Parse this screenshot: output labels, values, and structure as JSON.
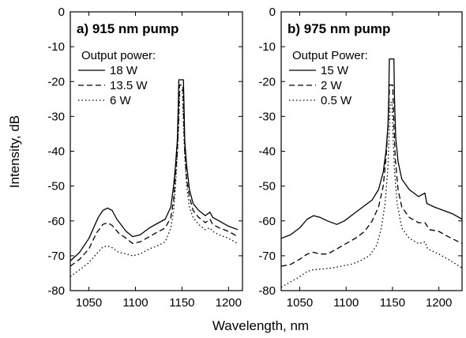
{
  "chart_data": [
    {
      "type": "line",
      "title": "a) 915 nm pump",
      "xlabel": "Wavelength, nm",
      "ylabel": "Intensity, dB",
      "xlim": [
        1030,
        1215
      ],
      "ylim": [
        -80,
        0
      ],
      "xticks": [
        1050,
        1100,
        1150,
        1200
      ],
      "yticks": [
        0,
        -10,
        -20,
        -30,
        -40,
        -50,
        -60,
        -70,
        -80
      ],
      "legend_title": "Output power:",
      "legend_position": "top-left",
      "series": [
        {
          "name": "18 W",
          "style": "solid",
          "color": "#000000",
          "points": [
            [
              1030,
              -71.5
            ],
            [
              1040,
              -69
            ],
            [
              1050,
              -65
            ],
            [
              1060,
              -59
            ],
            [
              1065,
              -57
            ],
            [
              1070,
              -56.3
            ],
            [
              1075,
              -57
            ],
            [
              1080,
              -59.5
            ],
            [
              1090,
              -63
            ],
            [
              1097,
              -64.5
            ],
            [
              1105,
              -64
            ],
            [
              1115,
              -62
            ],
            [
              1125,
              -60.5
            ],
            [
              1132,
              -59.5
            ],
            [
              1138,
              -56
            ],
            [
              1141,
              -50
            ],
            [
              1143,
              -44
            ],
            [
              1145,
              -37
            ],
            [
              1146,
              -27
            ],
            [
              1146.6,
              -19.5
            ],
            [
              1151.5,
              -19.5
            ],
            [
              1152.2,
              -27
            ],
            [
              1153,
              -37
            ],
            [
              1155,
              -44
            ],
            [
              1158,
              -51
            ],
            [
              1162,
              -55
            ],
            [
              1168,
              -57
            ],
            [
              1175,
              -58.5
            ],
            [
              1180,
              -57.5
            ],
            [
              1183,
              -59
            ],
            [
              1190,
              -60
            ],
            [
              1200,
              -61.5
            ],
            [
              1210,
              -62.5
            ]
          ]
        },
        {
          "name": "13.5 W",
          "style": "dash",
          "color": "#000000",
          "points": [
            [
              1030,
              -73
            ],
            [
              1040,
              -71
            ],
            [
              1050,
              -68
            ],
            [
              1058,
              -63.5
            ],
            [
              1065,
              -61
            ],
            [
              1070,
              -60.5
            ],
            [
              1075,
              -61.3
            ],
            [
              1082,
              -63.5
            ],
            [
              1090,
              -65
            ],
            [
              1097,
              -66.5
            ],
            [
              1105,
              -66
            ],
            [
              1115,
              -64.5
            ],
            [
              1125,
              -63
            ],
            [
              1132,
              -62
            ],
            [
              1138,
              -59
            ],
            [
              1141,
              -54
            ],
            [
              1143,
              -47
            ],
            [
              1145,
              -40
            ],
            [
              1146.5,
              -30
            ],
            [
              1147.3,
              -21
            ],
            [
              1151,
              -21
            ],
            [
              1151.8,
              -30
            ],
            [
              1153,
              -40
            ],
            [
              1155,
              -48
            ],
            [
              1158,
              -53
            ],
            [
              1162,
              -57
            ],
            [
              1168,
              -59
            ],
            [
              1175,
              -60.5
            ],
            [
              1180,
              -59.5
            ],
            [
              1183,
              -61
            ],
            [
              1190,
              -62
            ],
            [
              1200,
              -63
            ],
            [
              1210,
              -64.5
            ]
          ]
        },
        {
          "name": "6 W",
          "style": "dot",
          "color": "#000000",
          "points": [
            [
              1030,
              -76
            ],
            [
              1040,
              -74
            ],
            [
              1050,
              -72
            ],
            [
              1058,
              -69.5
            ],
            [
              1065,
              -67.5
            ],
            [
              1070,
              -67.2
            ],
            [
              1075,
              -67.7
            ],
            [
              1082,
              -69
            ],
            [
              1090,
              -69.5
            ],
            [
              1097,
              -70
            ],
            [
              1105,
              -69.5
            ],
            [
              1115,
              -68
            ],
            [
              1125,
              -67
            ],
            [
              1132,
              -66
            ],
            [
              1138,
              -62
            ],
            [
              1141,
              -57
            ],
            [
              1143,
              -50
            ],
            [
              1145,
              -41
            ],
            [
              1146.5,
              -32
            ],
            [
              1147.8,
              -22.5
            ],
            [
              1150.5,
              -22.5
            ],
            [
              1151.5,
              -32
            ],
            [
              1153,
              -41
            ],
            [
              1155,
              -50
            ],
            [
              1158,
              -56
            ],
            [
              1162,
              -59
            ],
            [
              1168,
              -61
            ],
            [
              1175,
              -62.5
            ],
            [
              1180,
              -62
            ],
            [
              1183,
              -63
            ],
            [
              1190,
              -64
            ],
            [
              1200,
              -65
            ],
            [
              1210,
              -66.5
            ]
          ]
        }
      ]
    },
    {
      "type": "line",
      "title": "b) 975 nm pump",
      "xlabel": "",
      "ylabel": "",
      "xlim": [
        1030,
        1225
      ],
      "ylim": [
        -80,
        0
      ],
      "xticks": [
        1050,
        1100,
        1150,
        1200
      ],
      "yticks": [
        0,
        -10,
        -20,
        -30,
        -40,
        -50,
        -60,
        -70,
        -80
      ],
      "legend_title": "Output Power:",
      "legend_position": "top-left",
      "series": [
        {
          "name": "15 W",
          "style": "solid",
          "color": "#000000",
          "points": [
            [
              1030,
              -65
            ],
            [
              1040,
              -64
            ],
            [
              1050,
              -62
            ],
            [
              1058,
              -59.5
            ],
            [
              1065,
              -58.5
            ],
            [
              1072,
              -59
            ],
            [
              1080,
              -60
            ],
            [
              1090,
              -61
            ],
            [
              1098,
              -60
            ],
            [
              1108,
              -58
            ],
            [
              1118,
              -56
            ],
            [
              1128,
              -54
            ],
            [
              1135,
              -51
            ],
            [
              1140,
              -46
            ],
            [
              1143,
              -40
            ],
            [
              1145,
              -33
            ],
            [
              1146,
              -25
            ],
            [
              1146.6,
              -13.5
            ],
            [
              1151.5,
              -13.5
            ],
            [
              1152.2,
              -25
            ],
            [
              1153.5,
              -36
            ],
            [
              1156,
              -43
            ],
            [
              1160,
              -48
            ],
            [
              1168,
              -51
            ],
            [
              1178,
              -53
            ],
            [
              1185,
              -52
            ],
            [
              1187,
              -55
            ],
            [
              1195,
              -56
            ],
            [
              1205,
              -57
            ],
            [
              1215,
              -58
            ],
            [
              1225,
              -59.5
            ]
          ]
        },
        {
          "name": "2 W",
          "style": "dash",
          "color": "#000000",
          "points": [
            [
              1030,
              -73
            ],
            [
              1040,
              -72.5
            ],
            [
              1050,
              -71
            ],
            [
              1058,
              -69.5
            ],
            [
              1065,
              -69
            ],
            [
              1072,
              -69.5
            ],
            [
              1080,
              -69.5
            ],
            [
              1090,
              -68
            ],
            [
              1100,
              -66.5
            ],
            [
              1110,
              -65
            ],
            [
              1120,
              -63
            ],
            [
              1128,
              -60
            ],
            [
              1135,
              -56
            ],
            [
              1140,
              -50
            ],
            [
              1143,
              -42
            ],
            [
              1145.5,
              -32
            ],
            [
              1146.8,
              -21
            ],
            [
              1150.2,
              -21
            ],
            [
              1151.5,
              -32
            ],
            [
              1153,
              -42
            ],
            [
              1156,
              -51
            ],
            [
              1160,
              -56
            ],
            [
              1168,
              -59
            ],
            [
              1178,
              -60.5
            ],
            [
              1185,
              -60.5
            ],
            [
              1190,
              -62.5
            ],
            [
              1200,
              -63
            ],
            [
              1210,
              -64.5
            ],
            [
              1225,
              -66.5
            ]
          ]
        },
        {
          "name": "0.5 W",
          "style": "dot",
          "color": "#000000",
          "points": [
            [
              1030,
              -79
            ],
            [
              1040,
              -77.5
            ],
            [
              1050,
              -76
            ],
            [
              1058,
              -74.5
            ],
            [
              1065,
              -74
            ],
            [
              1075,
              -73.8
            ],
            [
              1085,
              -73.5
            ],
            [
              1095,
              -73
            ],
            [
              1105,
              -72.5
            ],
            [
              1115,
              -71.5
            ],
            [
              1125,
              -70
            ],
            [
              1133,
              -67
            ],
            [
              1138,
              -62
            ],
            [
              1142,
              -55
            ],
            [
              1145,
              -45
            ],
            [
              1146.5,
              -35
            ],
            [
              1147.5,
              -26
            ],
            [
              1149.5,
              -26
            ],
            [
              1150.5,
              -35
            ],
            [
              1152,
              -45
            ],
            [
              1155,
              -55
            ],
            [
              1160,
              -62
            ],
            [
              1168,
              -65
            ],
            [
              1178,
              -66.5
            ],
            [
              1185,
              -66
            ],
            [
              1188,
              -68
            ],
            [
              1200,
              -69.5
            ],
            [
              1210,
              -71
            ],
            [
              1225,
              -73.5
            ]
          ]
        }
      ]
    }
  ]
}
